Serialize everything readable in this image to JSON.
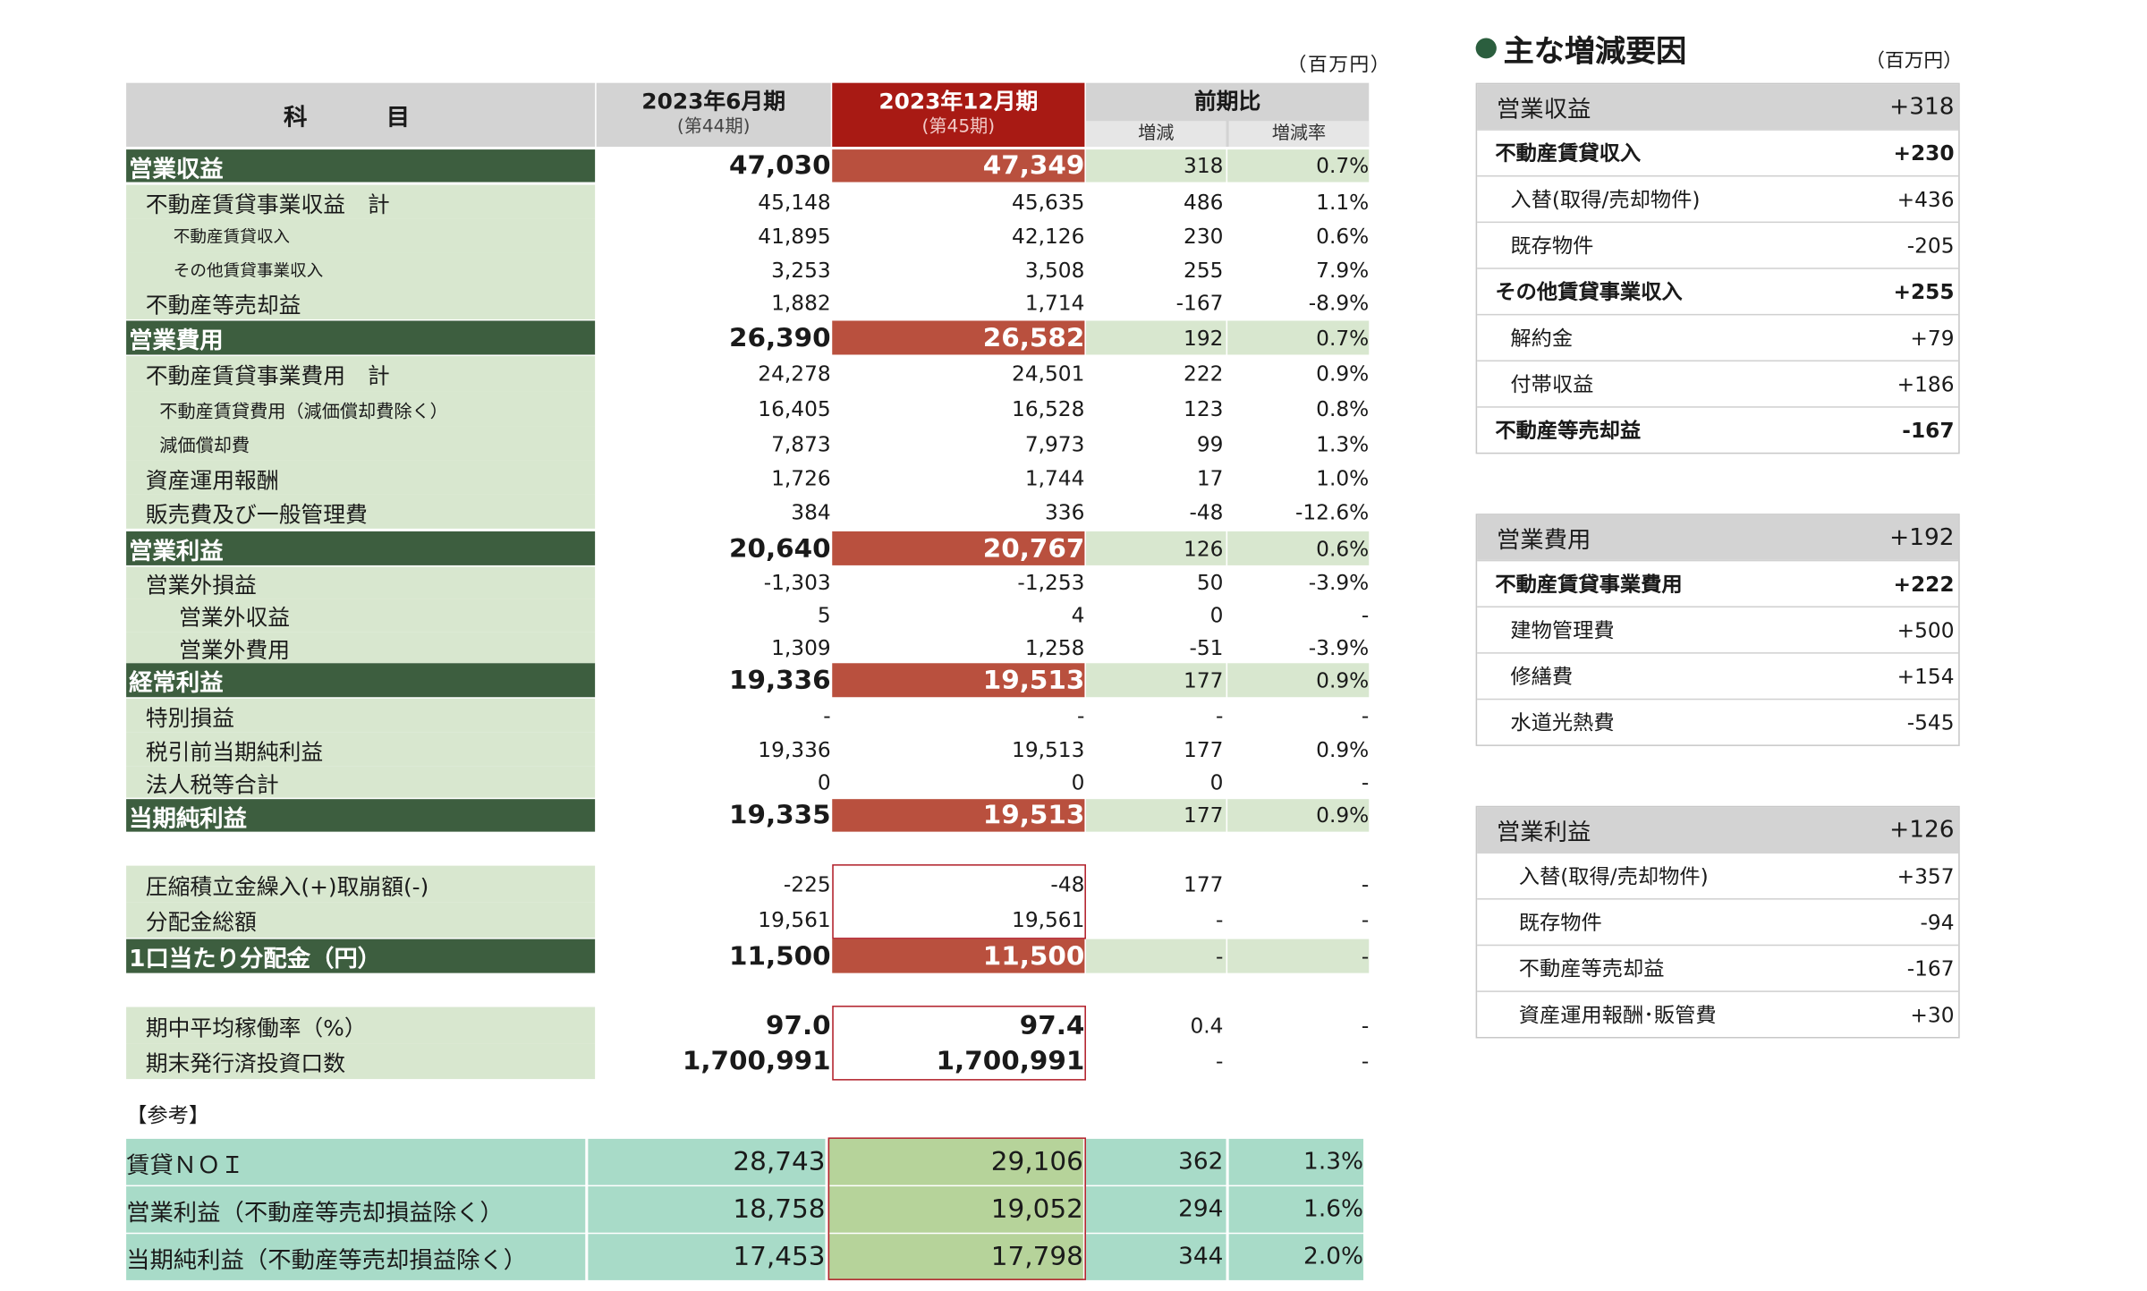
{
  "unit": "（百万円）",
  "header": {
    "item": "科　目",
    "prev_period": "2023年6月期",
    "prev_sub": "(第44期)",
    "cur_period": "2023年12月期",
    "cur_sub": "(第45期)",
    "compare": "前期比",
    "diff": "増減",
    "rate": "増減率"
  },
  "rows": [
    {
      "label": "営業収益",
      "prev": "47,030",
      "cur": "47,349",
      "diff": "318",
      "rate": "0.7%"
    },
    {
      "label": "不動産賃貸事業収益　計",
      "prev": "45,148",
      "cur": "45,635",
      "diff": "486",
      "rate": "1.1%"
    },
    {
      "label": "不動産賃貸収入",
      "prev": "41,895",
      "cur": "42,126",
      "diff": "230",
      "rate": "0.6%"
    },
    {
      "label": "その他賃貸事業収入",
      "prev": "3,253",
      "cur": "3,508",
      "diff": "255",
      "rate": "7.9%"
    },
    {
      "label": "不動産等売却益",
      "prev": "1,882",
      "cur": "1,714",
      "diff": "-167",
      "rate": "-8.9%"
    },
    {
      "label": "営業費用",
      "prev": "26,390",
      "cur": "26,582",
      "diff": "192",
      "rate": "0.7%"
    },
    {
      "label": "不動産賃貸事業費用　計",
      "prev": "24,278",
      "cur": "24,501",
      "diff": "222",
      "rate": "0.9%"
    },
    {
      "label": "不動産賃貸費用（減価償却費除く）",
      "prev": "16,405",
      "cur": "16,528",
      "diff": "123",
      "rate": "0.8%"
    },
    {
      "label": "減価償却費",
      "prev": "7,873",
      "cur": "7,973",
      "diff": "99",
      "rate": "1.3%"
    },
    {
      "label": "資産運用報酬",
      "prev": "1,726",
      "cur": "1,744",
      "diff": "17",
      "rate": "1.0%"
    },
    {
      "label": "販売費及び一般管理費",
      "prev": "384",
      "cur": "336",
      "diff": "-48",
      "rate": "-12.6%"
    },
    {
      "label": "営業利益",
      "prev": "20,640",
      "cur": "20,767",
      "diff": "126",
      "rate": "0.6%"
    },
    {
      "label": "営業外損益",
      "prev": "-1,303",
      "cur": "-1,253",
      "diff": "50",
      "rate": "-3.9%"
    },
    {
      "label": "営業外収益",
      "prev": "5",
      "cur": "4",
      "diff": "0",
      "rate": "-"
    },
    {
      "label": "営業外費用",
      "prev": "1,309",
      "cur": "1,258",
      "diff": "-51",
      "rate": "-3.9%"
    },
    {
      "label": "経常利益",
      "prev": "19,336",
      "cur": "19,513",
      "diff": "177",
      "rate": "0.9%"
    },
    {
      "label": "特別損益",
      "prev": "-",
      "cur": "-",
      "diff": "-",
      "rate": "-"
    },
    {
      "label": "税引前当期純利益",
      "prev": "19,336",
      "cur": "19,513",
      "diff": "177",
      "rate": "0.9%"
    },
    {
      "label": "法人税等合計",
      "prev": "0",
      "cur": "0",
      "diff": "0",
      "rate": "-"
    },
    {
      "label": "当期純利益",
      "prev": "19,335",
      "cur": "19,513",
      "diff": "177",
      "rate": "0.9%"
    },
    {
      "label": "圧縮積立金繰入(+)取崩額(-)",
      "prev": "-225",
      "cur": "-48",
      "diff": "177",
      "rate": "-"
    },
    {
      "label": "分配金総額",
      "prev": "19,561",
      "cur": "19,561",
      "diff": "-",
      "rate": "-"
    },
    {
      "label": "1口当たり分配金（円）",
      "prev": "11,500",
      "cur": "11,500",
      "diff": "-",
      "rate": "-"
    },
    {
      "label": "期中平均稼働率（%）",
      "prev": "97.0",
      "cur": "97.4",
      "diff": "0.4",
      "rate": "-"
    },
    {
      "label": "期末発行済投資口数",
      "prev": "1,700,991",
      "cur": "1,700,991",
      "diff": "-",
      "rate": "-"
    }
  ],
  "reference": {
    "label": "【参考】",
    "rows": [
      {
        "label": "賃貸ＮＯＩ",
        "prev": "28,743",
        "cur": "29,106",
        "diff": "362",
        "rate": "1.3%"
      },
      {
        "label": "営業利益（不動産等売却損益除く）",
        "prev": "18,758",
        "cur": "19,052",
        "diff": "294",
        "rate": "1.6%"
      },
      {
        "label": "当期純利益（不動産等売却損益除く）",
        "prev": "17,453",
        "cur": "17,798",
        "diff": "344",
        "rate": "2.0%"
      }
    ]
  },
  "factors": {
    "title": "主な増減要因",
    "unit": "（百万円）",
    "panels": [
      {
        "head": "営業収益",
        "head_value": "+318",
        "items": [
          {
            "label": "不動産賃貸収入",
            "value": "+230"
          },
          {
            "label": "入替(取得/売却物件)",
            "value": "+436"
          },
          {
            "label": "既存物件",
            "value": "-205"
          },
          {
            "label": "その他賃貸事業収入",
            "value": "+255"
          },
          {
            "label": "解約金",
            "value": "+79"
          },
          {
            "label": "付帯収益",
            "value": "+186"
          },
          {
            "label": "不動産等売却益",
            "value": "-167"
          }
        ]
      },
      {
        "head": "営業費用",
        "head_value": "+192",
        "items": [
          {
            "label": "不動産賃貸事業費用",
            "value": "+222"
          },
          {
            "label": "建物管理費",
            "value": "+500"
          },
          {
            "label": "修繕費",
            "value": "+154"
          },
          {
            "label": "水道光熱費",
            "value": "-545"
          }
        ]
      },
      {
        "head": "営業利益",
        "head_value": "+126",
        "items": [
          {
            "label": "入替(取得/売却物件)",
            "value": "+357"
          },
          {
            "label": "既存物件",
            "value": "-94"
          },
          {
            "label": "不動産等売却益",
            "value": "-167"
          },
          {
            "label": "資産運用報酬･販管費",
            "value": "+30"
          }
        ]
      }
    ]
  }
}
